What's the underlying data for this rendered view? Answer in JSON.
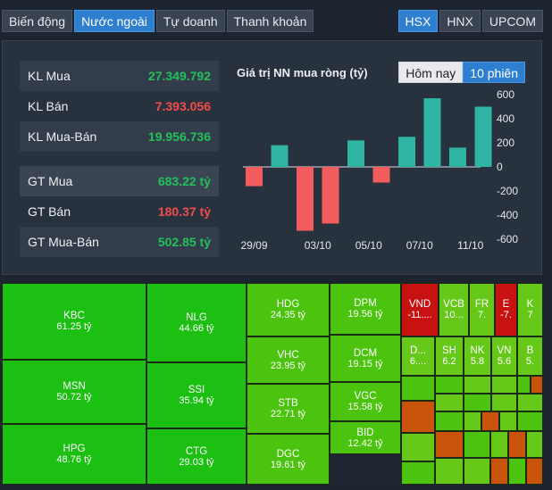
{
  "tabs_left": [
    "Biến động",
    "Nước ngoài",
    "Tự doanh",
    "Thanh khoản"
  ],
  "tabs_left_active": 1,
  "tabs_right": [
    "HSX",
    "HNX",
    "UPCOM"
  ],
  "tabs_right_active": 0,
  "stats": {
    "kl_mua": {
      "label": "KL Mua",
      "value": "27.349.792"
    },
    "kl_ban": {
      "label": "KL Bán",
      "value": "7.393.056"
    },
    "kl_mua_ban": {
      "label": "KL Mua-Bán",
      "value": "19.956.736"
    },
    "gt_mua": {
      "label": "GT Mua",
      "value": "683.22 tỷ"
    },
    "gt_ban": {
      "label": "GT Bán",
      "value": "180.37 tỷ"
    },
    "gt_mua_ban": {
      "label": "GT Mua-Bán",
      "value": "502.85 tỷ"
    }
  },
  "chart_title": "Giá trị NN mua ròng (tỷ)",
  "period_buttons": [
    "Hôm nay",
    "10 phiên"
  ],
  "period_active": 1,
  "colors": {
    "positive": "#2fb5a3",
    "negative": "#f25c5c",
    "green_text": "#22c25a",
    "red_text": "#f24c4c",
    "active_tab": "#2f7fd0"
  },
  "chart_data": {
    "type": "bar",
    "title": "Giá trị NN mua ròng (tỷ)",
    "values": [
      -160,
      180,
      -530,
      -470,
      220,
      -130,
      250,
      570,
      160,
      500
    ],
    "x_tick_labels": [
      "29/09",
      "03/10",
      "05/10",
      "07/10",
      "11/10"
    ],
    "x_tick_indices": [
      0,
      2.5,
      4.5,
      6.5,
      8.5
    ],
    "y_ticks": [
      600,
      400,
      200,
      0,
      -200,
      -400,
      -600
    ],
    "ylim": [
      -600,
      600
    ],
    "grid": false
  },
  "treemap": [
    {
      "sym": "KBC",
      "val": "61.25 tỷ",
      "c": "g1"
    },
    {
      "sym": "MSN",
      "val": "50.72 tỷ",
      "c": "g1"
    },
    {
      "sym": "HPG",
      "val": "48.76 tỷ",
      "c": "g1"
    },
    {
      "sym": "NLG",
      "val": "44.66 tỷ",
      "c": "g1"
    },
    {
      "sym": "SSI",
      "val": "35.94 tỷ",
      "c": "g1"
    },
    {
      "sym": "CTG",
      "val": "29.03 tỷ",
      "c": "g1"
    },
    {
      "sym": "HDG",
      "val": "24.35 tỷ",
      "c": "g2"
    },
    {
      "sym": "VHC",
      "val": "23.95 tỷ",
      "c": "g2"
    },
    {
      "sym": "STB",
      "val": "22.71 tỷ",
      "c": "g2"
    },
    {
      "sym": "DGC",
      "val": "19.61 tỷ",
      "c": "g2"
    },
    {
      "sym": "DPM",
      "val": "19.56 tỷ",
      "c": "g2"
    },
    {
      "sym": "DCM",
      "val": "19.15 tỷ",
      "c": "g2"
    },
    {
      "sym": "VGC",
      "val": "15.58 tỷ",
      "c": "g2"
    },
    {
      "sym": "BID",
      "val": "12.42 tỷ",
      "c": "g2"
    },
    {
      "sym": "VND",
      "val": "-11....",
      "c": "r1"
    },
    {
      "sym": "VCB",
      "val": "10...",
      "c": "g3"
    },
    {
      "sym": "FR",
      "val": "7.",
      "c": "g3"
    },
    {
      "sym": "E",
      "val": "-7.",
      "c": "r1"
    },
    {
      "sym": "K",
      "val": "7",
      "c": "g3"
    },
    {
      "sym": "D...",
      "val": "6....",
      "c": "g3"
    },
    {
      "sym": "SH",
      "val": "6.2",
      "c": "g3"
    },
    {
      "sym": "NK",
      "val": "5.8",
      "c": "g3"
    },
    {
      "sym": "VN",
      "val": "5.6",
      "c": "g3"
    },
    {
      "sym": "B",
      "val": "5.",
      "c": "g3"
    }
  ]
}
